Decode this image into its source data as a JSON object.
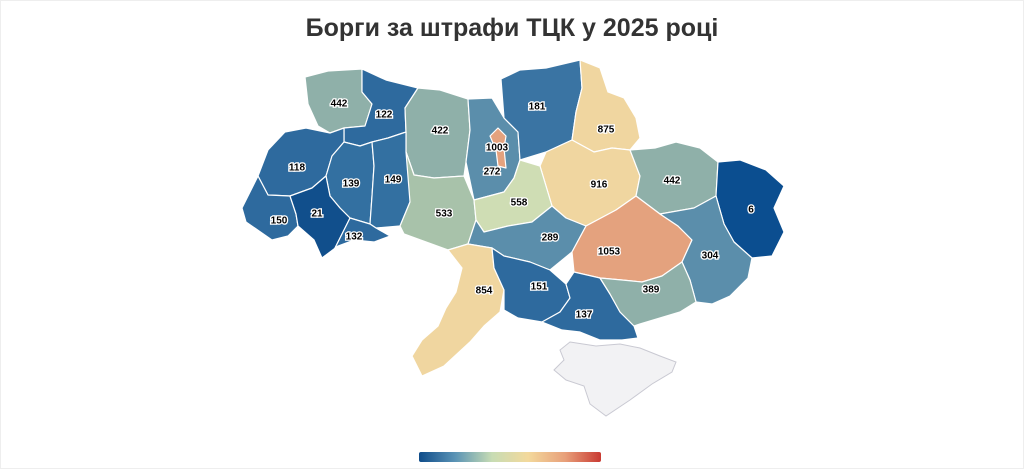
{
  "title": "Борги за штрафи ТЦК у 2025 році",
  "legend": {
    "colors": [
      "#0f4c8a",
      "#5a93b5",
      "#c7dcb4",
      "#f3d99c",
      "#e8a07a",
      "#c93a32"
    ]
  },
  "regions": [
    {
      "id": "volyn",
      "value": "442",
      "color": "#8fb0a9"
    },
    {
      "id": "rivne",
      "value": "122",
      "color": "#2e6a9e"
    },
    {
      "id": "zhytomyr",
      "value": "422",
      "color": "#8fb0a9"
    },
    {
      "id": "kyiv-oblast",
      "value": "272",
      "color": "#5b8eab"
    },
    {
      "id": "kyiv-city",
      "value": "1003",
      "color": "#e4a27e"
    },
    {
      "id": "chernihiv",
      "value": "181",
      "color": "#3a74a3"
    },
    {
      "id": "sumy",
      "value": "875",
      "color": "#f0d6a0"
    },
    {
      "id": "lviv",
      "value": "118",
      "color": "#2e6a9e"
    },
    {
      "id": "ternopil",
      "value": "139",
      "color": "#3370a1"
    },
    {
      "id": "khmelnytskyi",
      "value": "149",
      "color": "#3370a1"
    },
    {
      "id": "poltava",
      "value": "916",
      "color": "#f0d6a0"
    },
    {
      "id": "kharkiv",
      "value": "442",
      "color": "#8fb0a9"
    },
    {
      "id": "luhansk",
      "value": "6",
      "color": "#0b4e90"
    },
    {
      "id": "zakarpattia",
      "value": "150",
      "color": "#2e6a9e"
    },
    {
      "id": "ivano-frankivsk",
      "value": "21",
      "color": "#114f8c"
    },
    {
      "id": "chernivtsi",
      "value": "132",
      "color": "#2e6a9e"
    },
    {
      "id": "vinnytsia",
      "value": "533",
      "color": "#a8c2aa"
    },
    {
      "id": "cherkasy",
      "value": "558",
      "color": "#cfddb4"
    },
    {
      "id": "kirovohrad",
      "value": "289",
      "color": "#5b8eab"
    },
    {
      "id": "dnipropetrovsk",
      "value": "1053",
      "color": "#e4a27e"
    },
    {
      "id": "donetsk",
      "value": "304",
      "color": "#5b8eab"
    },
    {
      "id": "odesa",
      "value": "854",
      "color": "#f0d6a0"
    },
    {
      "id": "mykolaiv",
      "value": "151",
      "color": "#2e6a9e"
    },
    {
      "id": "kherson",
      "value": "137",
      "color": "#2e6a9e"
    },
    {
      "id": "zaporizhzhia",
      "value": "389",
      "color": "#8fb0a9"
    },
    {
      "id": "crimea",
      "value": "",
      "color": "#f2f2f4"
    }
  ]
}
